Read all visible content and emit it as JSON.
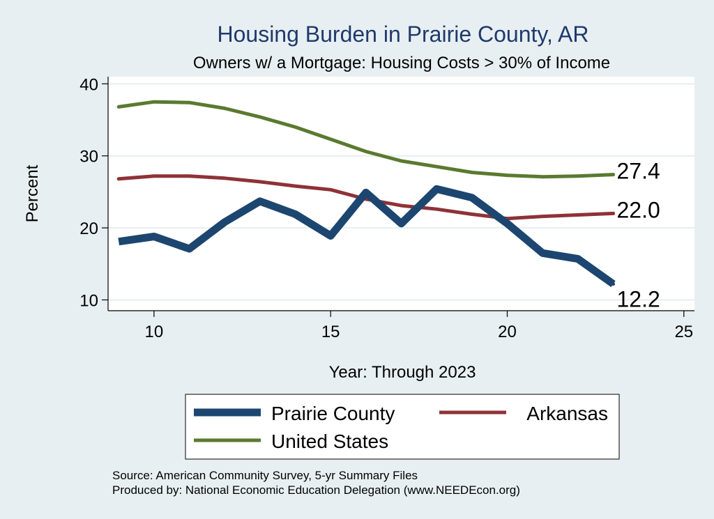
{
  "chart_data": {
    "type": "line",
    "title": "Housing Burden in Prairie County, AR",
    "subtitle": "Owners w/ a Mortgage: Housing Costs > 30% of Income",
    "xlabel": "Year: Through 2023",
    "ylabel": "Percent",
    "xlim": [
      8.7,
      25.3
    ],
    "ylim": [
      8.5,
      41
    ],
    "xticks": [
      10,
      15,
      20,
      25
    ],
    "yticks": [
      10,
      20,
      30,
      40
    ],
    "x": [
      9,
      10,
      11,
      12,
      13,
      14,
      15,
      16,
      17,
      18,
      19,
      20,
      21,
      22,
      23
    ],
    "series": [
      {
        "name": "Prairie County",
        "color": "#1c4670",
        "values": [
          18.1,
          18.8,
          17.1,
          20.8,
          23.7,
          21.9,
          18.9,
          24.9,
          20.6,
          25.4,
          24.2,
          20.6,
          16.5,
          15.7,
          12.2
        ],
        "end_label": "12.2"
      },
      {
        "name": "Arkansas",
        "color": "#8e3237",
        "values": [
          26.8,
          27.2,
          27.2,
          26.9,
          26.4,
          25.8,
          25.3,
          24.0,
          23.1,
          22.6,
          21.9,
          21.3,
          21.6,
          21.8,
          22.0
        ],
        "end_label": "22.0"
      },
      {
        "name": "United States",
        "color": "#5a7a2f",
        "values": [
          36.8,
          37.5,
          37.4,
          36.6,
          35.4,
          34.0,
          32.3,
          30.6,
          29.3,
          28.5,
          27.7,
          27.3,
          27.1,
          27.2,
          27.4
        ],
        "end_label": "27.4"
      }
    ],
    "legend_position": "bottom",
    "grid": true,
    "notes": [
      "Source: American Community Survey, 5-yr Summary Files",
      "Produced by: National Economic Education Delegation (www.NEEDEcon.org)"
    ]
  }
}
